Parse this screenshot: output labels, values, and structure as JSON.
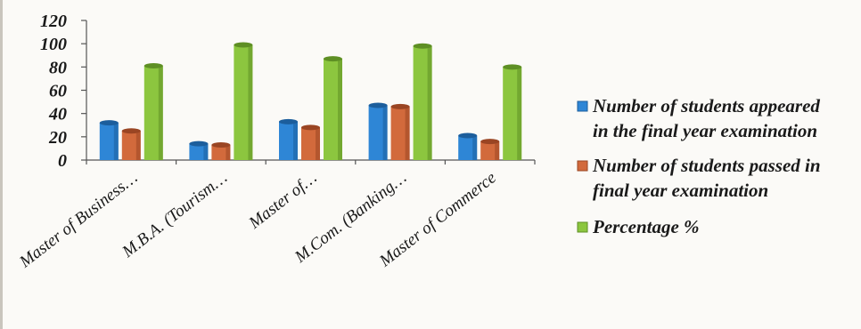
{
  "chart_data": {
    "type": "bar",
    "categories": [
      "Master of Business…",
      "M.B.A. (Tourism…",
      "Master of…",
      "M.Com. (Banking…",
      "Master of Commerce"
    ],
    "series": [
      {
        "name": "Number of students appeared in the final year examination",
        "values": [
          32,
          14,
          33,
          47,
          21
        ],
        "color": "#2e86d6",
        "dark": "#1c5e9c"
      },
      {
        "name": "Number of students passed in final year examination",
        "values": [
          25,
          13,
          28,
          46,
          16
        ],
        "color": "#d26a3c",
        "dark": "#9a4523"
      },
      {
        "name": "Percentage %",
        "values": [
          81,
          99,
          87,
          98,
          80
        ],
        "color": "#8cc63f",
        "dark": "#5e8f24"
      }
    ],
    "yticks": [
      "0",
      "20",
      "40",
      "60",
      "80",
      "100",
      "120"
    ],
    "ylim": [
      0,
      120
    ],
    "legend": {
      "position": "right",
      "entries": [
        {
          "lines": [
            "Number of students appeared",
            "in the final year examination"
          ]
        },
        {
          "lines": [
            "Number of students passed in",
            "final year examination"
          ]
        },
        {
          "lines": [
            "Percentage %"
          ]
        }
      ]
    },
    "title": "",
    "xlabel": "",
    "ylabel": "",
    "grid": false
  }
}
